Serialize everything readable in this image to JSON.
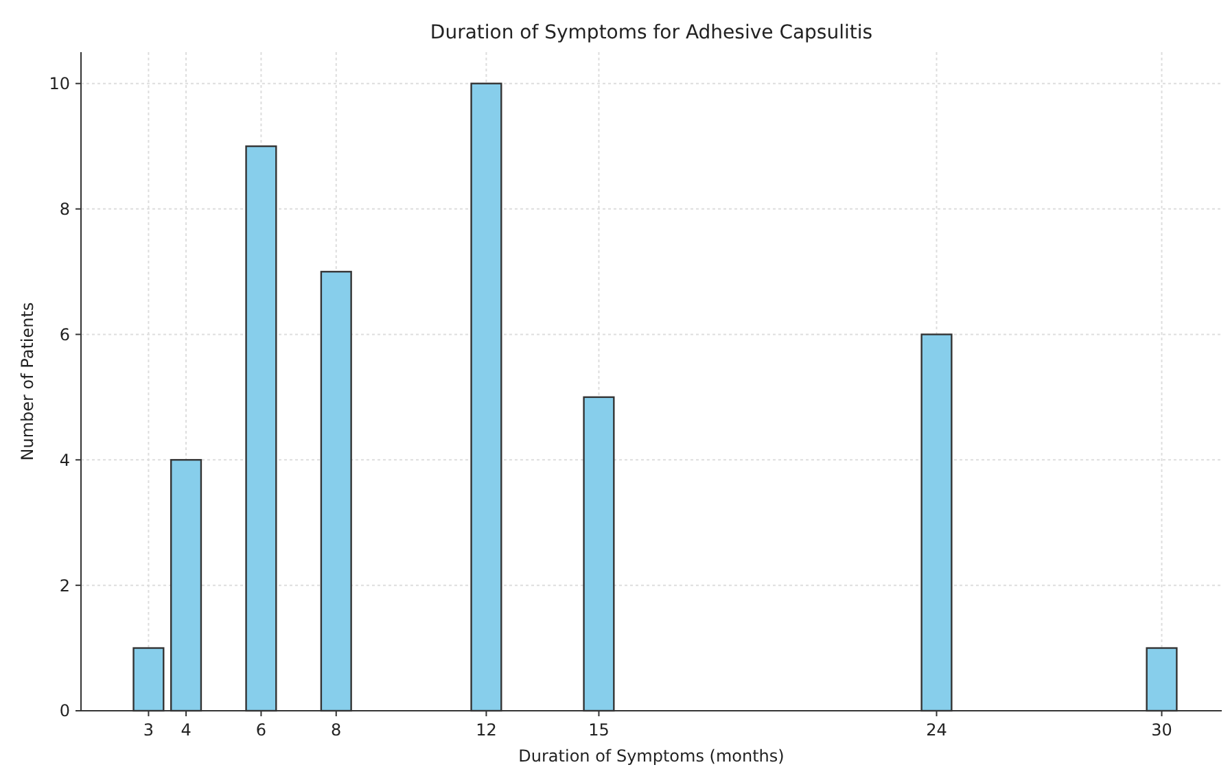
{
  "chart_data": {
    "type": "bar",
    "title": "Duration of Symptoms for Adhesive Capsulitis",
    "xlabel": "Duration of Symptoms (months)",
    "ylabel": "Number of Patients",
    "x": [
      3,
      4,
      6,
      8,
      12,
      15,
      24,
      30
    ],
    "values": [
      1,
      4,
      9,
      7,
      10,
      5,
      6,
      1
    ],
    "color": "#87ceeb",
    "xlim": [
      1.2,
      31.6
    ],
    "xticks": [
      3,
      4,
      6,
      8,
      12,
      15,
      24,
      30
    ],
    "ylim": [
      0,
      10.5
    ],
    "yticks": [
      0,
      2,
      4,
      6,
      8,
      10
    ],
    "grid": true
  }
}
